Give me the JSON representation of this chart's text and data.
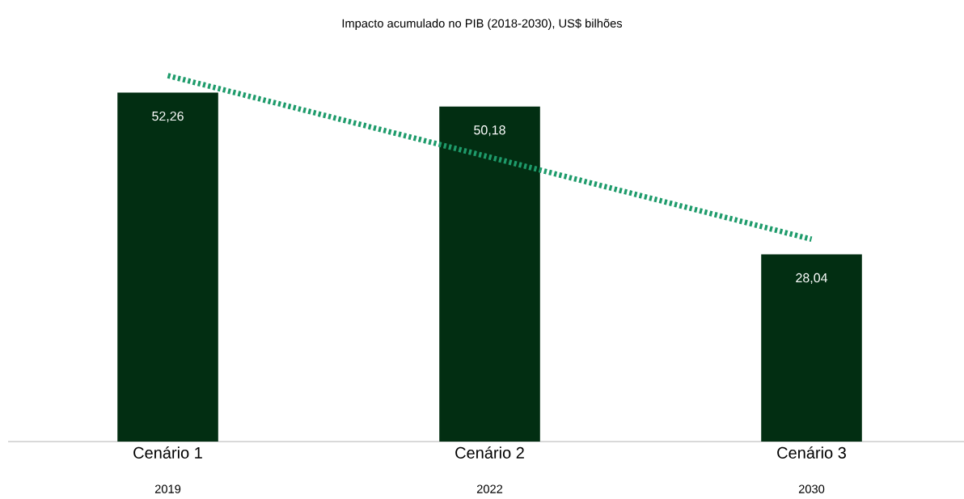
{
  "chart_data": {
    "type": "bar",
    "title": "Impacto acumulado no PIB (2018-2030), US$ bilhões",
    "categories": [
      "Cenário 1",
      "Cenário 2",
      "Cenário 3"
    ],
    "series": [
      {
        "color": "#022e12",
        "values": [
          52.26,
          50.18,
          28.04
        ],
        "value_labels": [
          "52,26",
          "50,18",
          "28,04"
        ]
      },
      {
        "type": "line",
        "color": "#1e9b6b",
        "line_style": "dotted",
        "values": [
          54.8,
          42.6,
          30.3
        ]
      }
    ],
    "annotations": [
      "2019",
      "2022",
      "2030"
    ]
  }
}
